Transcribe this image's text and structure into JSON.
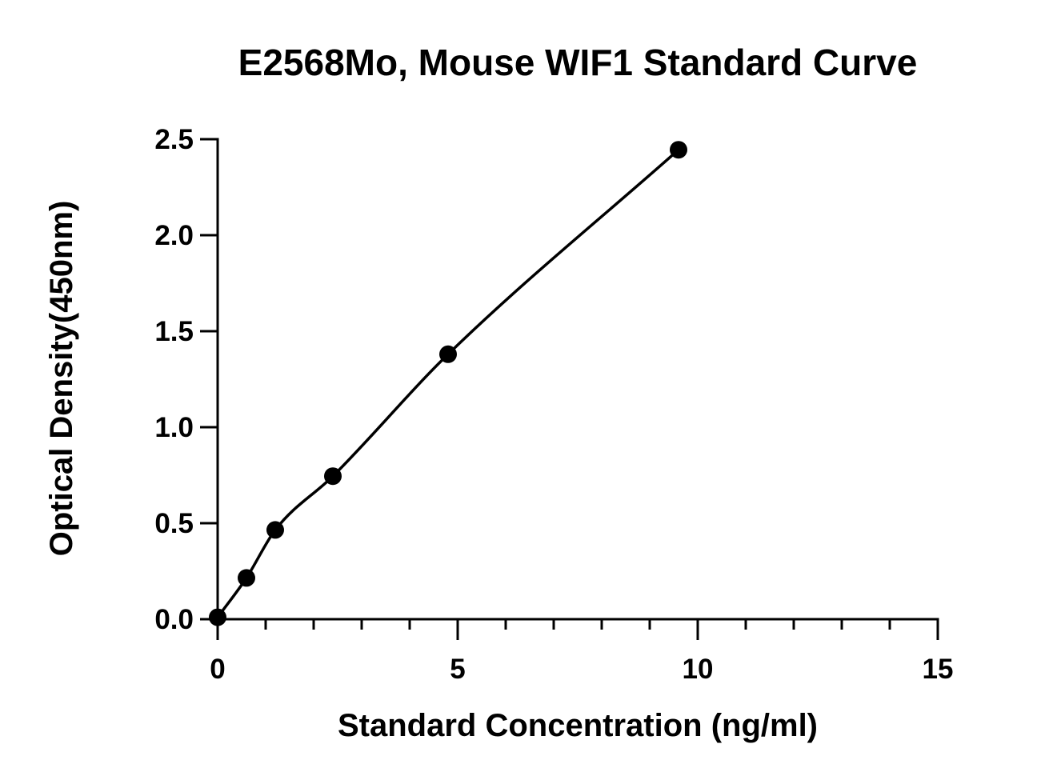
{
  "chart_data": {
    "type": "scatter",
    "title": "E2568Mo, Mouse WIF1 Standard Curve",
    "xlabel": "Standard Concentration (ng/ml)",
    "ylabel": "Optical Density(450nm)",
    "xlim": [
      0,
      15
    ],
    "ylim": [
      0,
      2.5
    ],
    "x_ticks": [
      "0",
      "5",
      "10",
      "15"
    ],
    "y_ticks": [
      "0.0",
      "0.5",
      "1.0",
      "1.5",
      "2.0",
      "2.5"
    ],
    "x_minor_tick_step": 1,
    "grid": false,
    "legend": "none",
    "series": [
      {
        "marker": "filled-circle",
        "fit_line": "smooth-curve",
        "x": [
          0,
          0.6,
          1.2,
          2.4,
          4.8,
          9.6
        ],
        "y": [
          0.01,
          0.215,
          0.465,
          0.745,
          1.38,
          2.445
        ]
      }
    ],
    "colors": {
      "marker": "#000000",
      "line": "#000000",
      "axis": "#000000"
    }
  }
}
